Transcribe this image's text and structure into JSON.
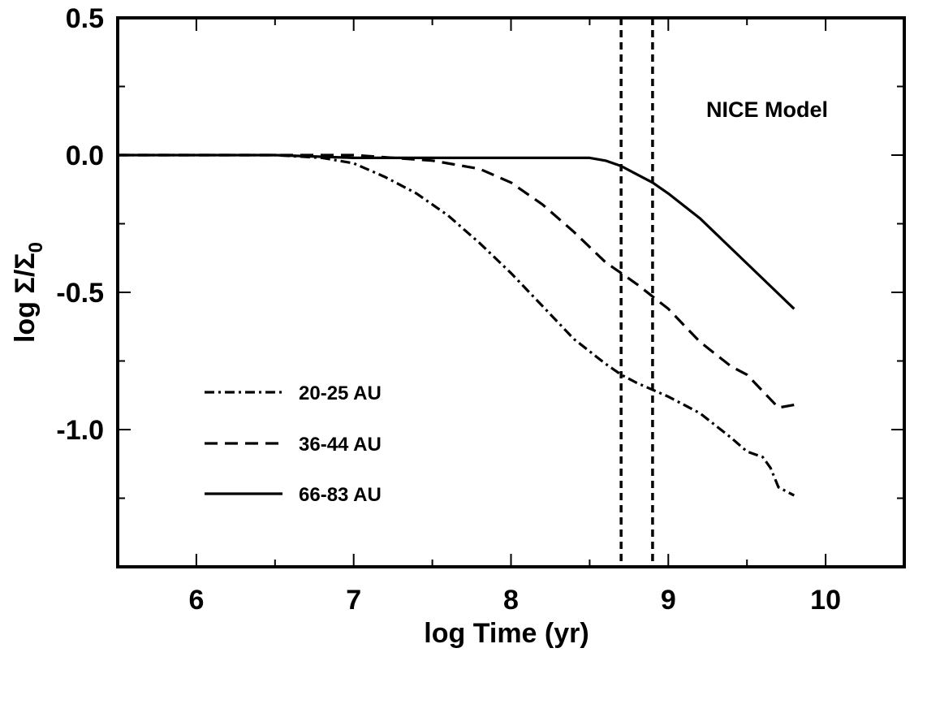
{
  "chart_data": {
    "type": "line",
    "title": "",
    "xlabel": "log Time (yr)",
    "ylabel": "log Σ/Σ",
    "ylabel_subscript": "0",
    "xlim": [
      5.5,
      10.5
    ],
    "ylim": [
      -1.5,
      0.5
    ],
    "xticks": [
      6,
      7,
      8,
      9,
      10
    ],
    "xtick_labels": [
      "6",
      "7",
      "8",
      "9",
      "10"
    ],
    "yticks": [
      0.5,
      0.0,
      -0.5,
      -1.0
    ],
    "ytick_labels": [
      "0.5",
      "0.0",
      "-0.5",
      "-1.0"
    ],
    "grid": false,
    "legend_position": "lower-left",
    "annotation": "NICE Model",
    "vertical_lines": [
      8.7,
      8.9
    ],
    "series": [
      {
        "name": "20-25 AU",
        "style": "dashdot",
        "x": [
          5.5,
          6.0,
          6.5,
          6.8,
          7.0,
          7.2,
          7.4,
          7.6,
          7.8,
          8.0,
          8.2,
          8.4,
          8.6,
          8.7,
          8.8,
          9.0,
          9.2,
          9.4,
          9.5,
          9.6,
          9.65,
          9.7,
          9.8
        ],
        "y": [
          0.0,
          0.0,
          0.0,
          -0.01,
          -0.03,
          -0.08,
          -0.14,
          -0.22,
          -0.32,
          -0.43,
          -0.55,
          -0.67,
          -0.76,
          -0.8,
          -0.83,
          -0.88,
          -0.94,
          -1.03,
          -1.08,
          -1.1,
          -1.14,
          -1.21,
          -1.24
        ]
      },
      {
        "name": "36-44 AU",
        "style": "dashed",
        "x": [
          5.5,
          6.5,
          7.0,
          7.5,
          7.8,
          8.0,
          8.2,
          8.4,
          8.6,
          8.7,
          8.8,
          9.0,
          9.2,
          9.4,
          9.5,
          9.6,
          9.7,
          9.8
        ],
        "y": [
          0.0,
          0.0,
          0.0,
          -0.02,
          -0.05,
          -0.1,
          -0.18,
          -0.28,
          -0.39,
          -0.43,
          -0.47,
          -0.56,
          -0.68,
          -0.77,
          -0.8,
          -0.86,
          -0.92,
          -0.91
        ]
      },
      {
        "name": "66-83 AU",
        "style": "solid",
        "x": [
          5.5,
          6.5,
          7.0,
          7.5,
          8.0,
          8.5,
          8.6,
          8.7,
          8.8,
          8.9,
          9.0,
          9.2,
          9.4,
          9.6,
          9.8
        ],
        "y": [
          0.0,
          0.0,
          -0.01,
          -0.01,
          -0.01,
          -0.01,
          -0.02,
          -0.04,
          -0.07,
          -0.1,
          -0.14,
          -0.23,
          -0.34,
          -0.45,
          -0.56
        ]
      }
    ]
  }
}
